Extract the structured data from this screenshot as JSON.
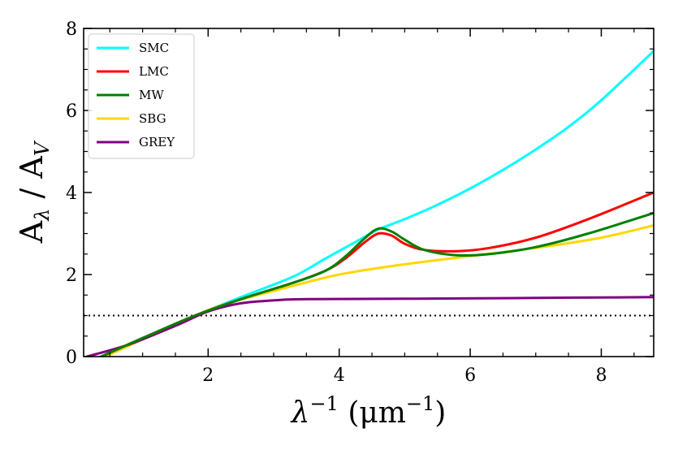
{
  "chart_data": {
    "type": "line",
    "title": "",
    "xlabel": "λ⁻¹ (μm⁻¹)",
    "xlabel_parts": {
      "base": "λ",
      "sup1": "−1",
      "mid": " (μm",
      "sup2": "−1",
      "end": ")"
    },
    "ylabel": "Aλ / AV",
    "ylabel_parts": {
      "a1": "A",
      "sub1": "λ",
      "slash": " / ",
      "a2": "A",
      "sub2": "V"
    },
    "xlim": [
      0.1,
      8.8
    ],
    "ylim": [
      0,
      8
    ],
    "x_ticks": [
      2,
      4,
      6,
      8
    ],
    "x_tick_labels": [
      "2",
      "4",
      "6",
      "8"
    ],
    "y_ticks": [
      0,
      2,
      4,
      6,
      8
    ],
    "y_tick_labels": [
      "0",
      "2",
      "4",
      "6",
      "8"
    ],
    "legend_position": "top-left",
    "reference_line": {
      "y": 1,
      "style": "dotted",
      "color": "#000000"
    },
    "series": [
      {
        "name": "SMC",
        "color": "#00ffff",
        "points": [
          [
            0.3,
            -0.05
          ],
          [
            1.0,
            0.45
          ],
          [
            1.8,
            1.0
          ],
          [
            2.5,
            1.45
          ],
          [
            3.3,
            1.95
          ],
          [
            3.8,
            2.4
          ],
          [
            4.2,
            2.75
          ],
          [
            4.6,
            3.1
          ],
          [
            5.0,
            3.35
          ],
          [
            5.5,
            3.7
          ],
          [
            6.0,
            4.1
          ],
          [
            6.5,
            4.55
          ],
          [
            7.0,
            5.05
          ],
          [
            7.5,
            5.6
          ],
          [
            8.0,
            6.25
          ],
          [
            8.8,
            7.45
          ]
        ]
      },
      {
        "name": "LMC",
        "color": "#ff0000",
        "points": [
          [
            0.3,
            -0.05
          ],
          [
            1.0,
            0.45
          ],
          [
            1.8,
            1.0
          ],
          [
            2.5,
            1.4
          ],
          [
            3.3,
            1.8
          ],
          [
            3.8,
            2.1
          ],
          [
            4.1,
            2.4
          ],
          [
            4.4,
            2.8
          ],
          [
            4.6,
            3.0
          ],
          [
            4.8,
            2.95
          ],
          [
            5.0,
            2.75
          ],
          [
            5.3,
            2.6
          ],
          [
            5.8,
            2.57
          ],
          [
            6.3,
            2.65
          ],
          [
            7.0,
            2.9
          ],
          [
            7.8,
            3.35
          ],
          [
            8.8,
            4.0
          ]
        ]
      },
      {
        "name": "MW",
        "color": "#008000",
        "points": [
          [
            0.3,
            -0.05
          ],
          [
            1.0,
            0.45
          ],
          [
            1.8,
            1.0
          ],
          [
            2.5,
            1.4
          ],
          [
            3.3,
            1.8
          ],
          [
            3.8,
            2.1
          ],
          [
            4.1,
            2.45
          ],
          [
            4.4,
            2.9
          ],
          [
            4.6,
            3.12
          ],
          [
            4.8,
            3.05
          ],
          [
            5.0,
            2.85
          ],
          [
            5.3,
            2.6
          ],
          [
            5.8,
            2.47
          ],
          [
            6.3,
            2.5
          ],
          [
            7.0,
            2.67
          ],
          [
            7.8,
            3.0
          ],
          [
            8.8,
            3.5
          ]
        ]
      },
      {
        "name": "SBG",
        "color": "#ffd700",
        "points": [
          [
            0.3,
            -0.1
          ],
          [
            1.0,
            0.42
          ],
          [
            1.8,
            1.0
          ],
          [
            2.3,
            1.3
          ],
          [
            3.0,
            1.6
          ],
          [
            4.0,
            2.0
          ],
          [
            5.0,
            2.25
          ],
          [
            6.0,
            2.45
          ],
          [
            7.0,
            2.65
          ],
          [
            8.0,
            2.9
          ],
          [
            8.8,
            3.2
          ]
        ]
      },
      {
        "name": "GREY",
        "color": "#800080",
        "points": [
          [
            0.15,
            0.0
          ],
          [
            0.8,
            0.3
          ],
          [
            1.5,
            0.75
          ],
          [
            2.0,
            1.1
          ],
          [
            2.5,
            1.3
          ],
          [
            3.0,
            1.37
          ],
          [
            3.5,
            1.4
          ],
          [
            5.0,
            1.41
          ],
          [
            7.0,
            1.43
          ],
          [
            8.8,
            1.45
          ]
        ]
      }
    ]
  }
}
